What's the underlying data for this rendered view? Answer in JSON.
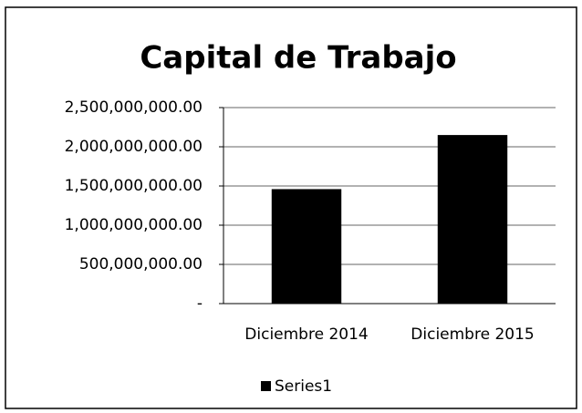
{
  "chart_data": {
    "type": "bar",
    "title": "Capital de Trabajo",
    "categories": [
      "Diciembre 2014",
      "Diciembre 2015"
    ],
    "series": [
      {
        "name": "Series1",
        "color": "#000000",
        "values": [
          1460000000,
          2150000000
        ]
      }
    ],
    "ylim": [
      0,
      2500000000
    ],
    "yticks": [
      {
        "value": 0,
        "label": "-"
      },
      {
        "value": 500000000,
        "label": "500,000,000.00"
      },
      {
        "value": 1000000000,
        "label": "1,000,000,000.00"
      },
      {
        "value": 1500000000,
        "label": "1,500,000,000.00"
      },
      {
        "value": 2000000000,
        "label": "2,000,000,000.00"
      },
      {
        "value": 2500000000,
        "label": "2,500,000,000.00"
      }
    ],
    "grid": true,
    "legend": "bottom"
  }
}
